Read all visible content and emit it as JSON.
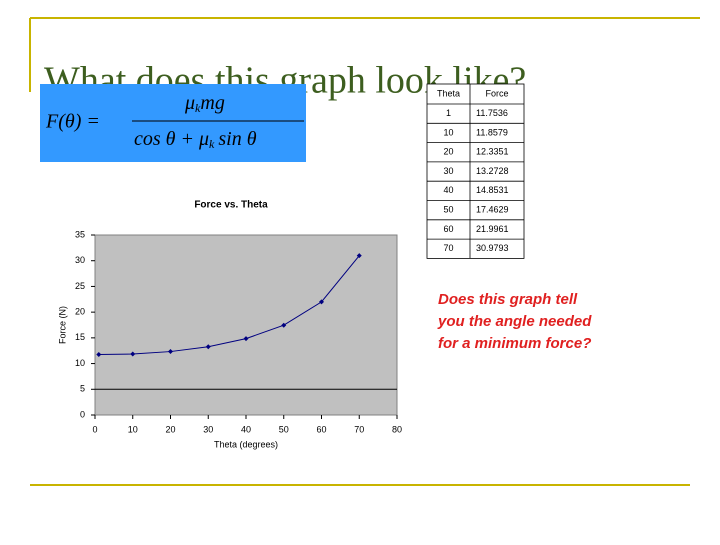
{
  "slide_title": "What does this graph look like?",
  "formula": {
    "lhs": "F(θ) =",
    "numerator": [
      "μ",
      "k",
      "mg"
    ],
    "denominator": [
      "cos θ + μ",
      "k",
      "sin θ"
    ]
  },
  "table": {
    "headers": [
      "Theta",
      "Force"
    ]
  },
  "note": [
    "Does this graph tell",
    "you the angle needed",
    "for a minimum force?"
  ],
  "chart_data": {
    "type": "scatter",
    "title": "Force vs. Theta",
    "x_label": "Theta (degrees)",
    "y_label": "Force (N)",
    "x": [
      1,
      10,
      20,
      30,
      40,
      50,
      60,
      70
    ],
    "series": [
      {
        "name": "Force",
        "color": "#000080",
        "values": [
          11.7536,
          11.8579,
          12.3351,
          13.2728,
          14.8531,
          17.4629,
          21.9961,
          30.9793
        ]
      }
    ],
    "xlim": [
      0,
      80
    ],
    "xticks": [
      0,
      10,
      20,
      30,
      40,
      50,
      60,
      70,
      80
    ],
    "ylim": [
      0,
      35
    ],
    "yticks": [
      0,
      5,
      10,
      15,
      20,
      25,
      30,
      35
    ],
    "hline": 5,
    "plot_background": "#c0c0c0"
  }
}
